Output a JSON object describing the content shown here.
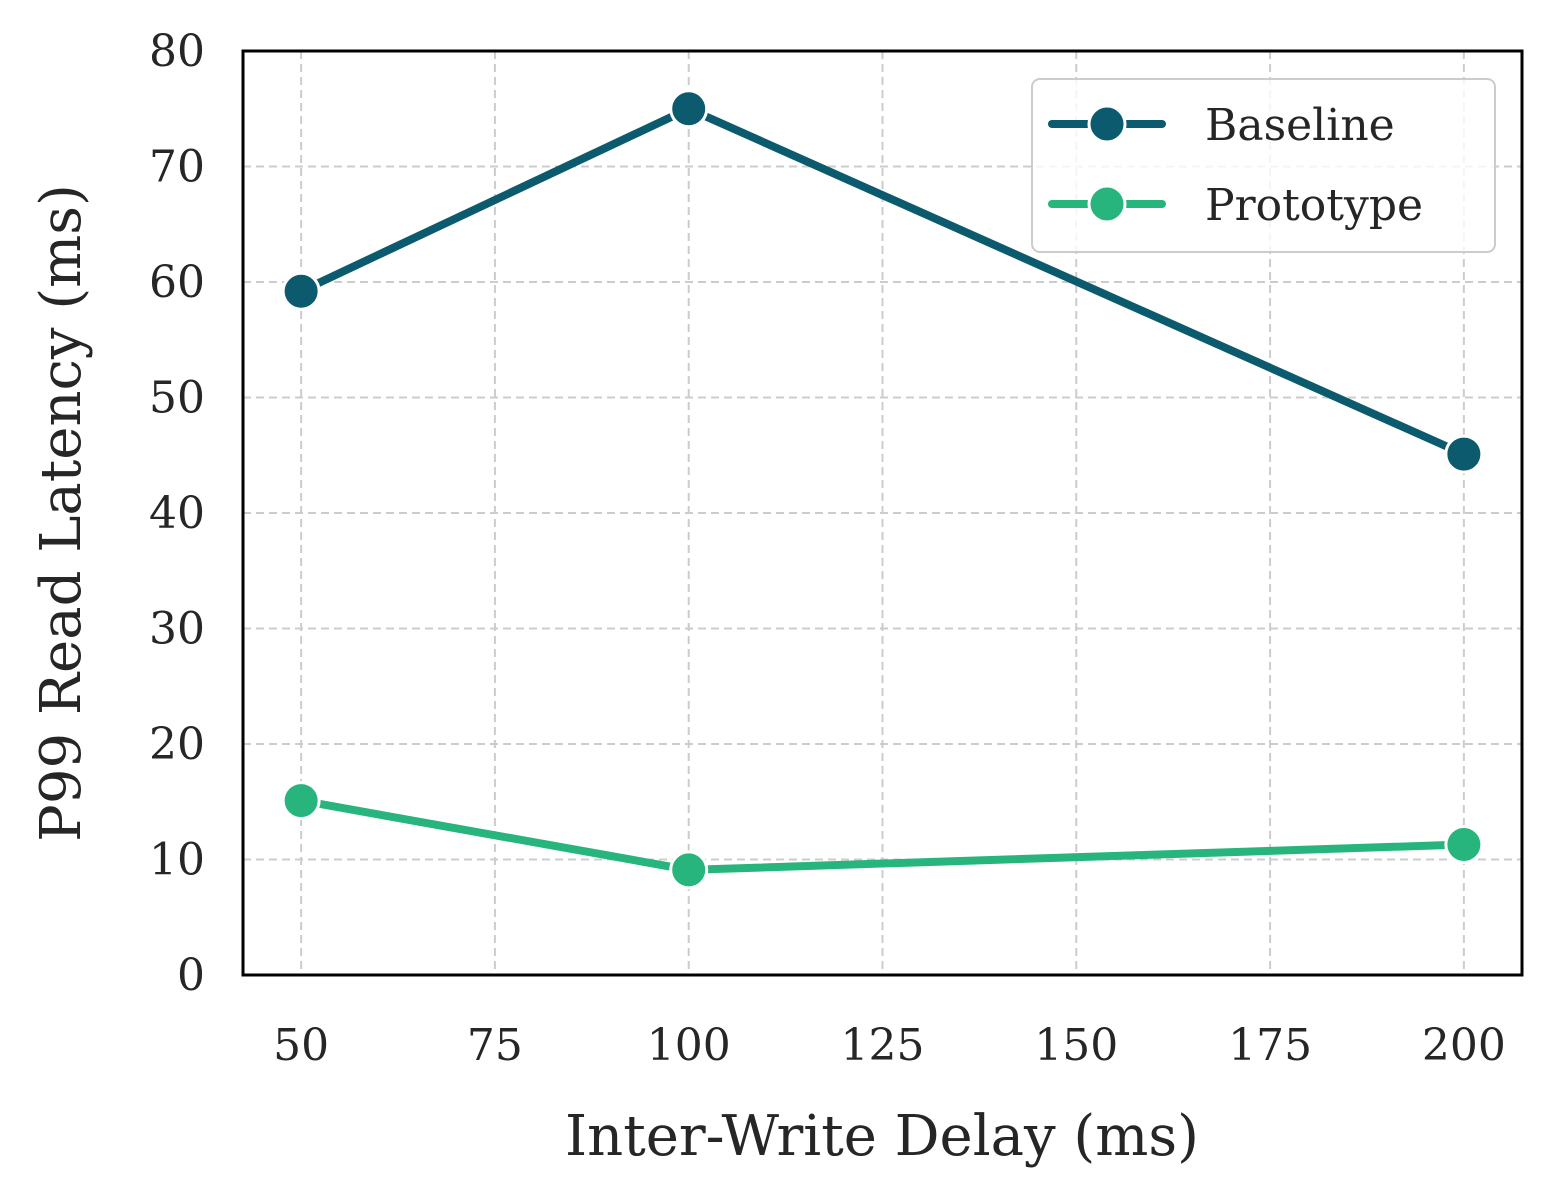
{
  "chart_data": {
    "type": "line",
    "title": "",
    "xlabel": "Inter-Write Delay (ms)",
    "ylabel": "P99 Read Latency (ms)",
    "x": [
      50,
      100,
      200
    ],
    "xlim": [
      42.5,
      207.5
    ],
    "ylim": [
      0,
      80
    ],
    "xticks": [
      50,
      75,
      100,
      125,
      150,
      175,
      200
    ],
    "yticks": [
      0,
      10,
      20,
      30,
      40,
      50,
      60,
      70,
      80
    ],
    "xtick_labels": [
      "50",
      "75",
      "100",
      "125",
      "150",
      "175",
      "200"
    ],
    "ytick_labels": [
      "0",
      "10",
      "20",
      "30",
      "40",
      "50",
      "60",
      "70",
      "80"
    ],
    "grid": true,
    "legend_position": "top-right",
    "series": [
      {
        "name": "Baseline",
        "values": [
          59.2,
          75.0,
          45.1
        ],
        "color": "#0b5a6d"
      },
      {
        "name": "Prototype",
        "values": [
          15.1,
          9.1,
          11.3
        ],
        "color": "#27b57d"
      }
    ]
  }
}
